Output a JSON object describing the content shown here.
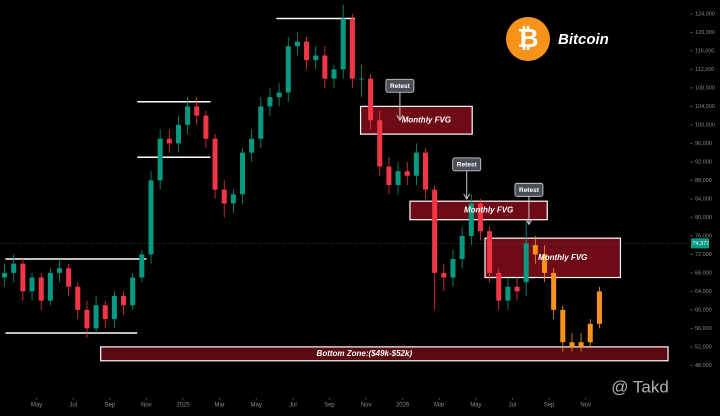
{
  "chart_data": {
    "type": "candlestick",
    "title": "Bitcoin",
    "logo_symbol": "₿",
    "watermark": "@ Takd",
    "xlim": [
      0,
      37.7
    ],
    "ylim": [
      41600,
      127000
    ],
    "xticks": [
      {
        "value": 2,
        "label": "May"
      },
      {
        "value": 4,
        "label": "Jul"
      },
      {
        "value": 6,
        "label": "Sep"
      },
      {
        "value": 8,
        "label": "Nov"
      },
      10,
      {
        "value": 12,
        "label": "Mar"
      },
      {
        "value": 14,
        "label": "May"
      },
      {
        "value": 16,
        "label": "Jul"
      },
      {
        "value": 18,
        "label": "Sep"
      },
      {
        "value": 20,
        "label": "Nov"
      },
      {
        "value": 22,
        "label": "2026"
      },
      {
        "value": 24,
        "label": "Mar"
      },
      {
        "value": 26,
        "label": "May"
      },
      {
        "value": 28,
        "label": "Jul"
      },
      {
        "value": 30,
        "label": "Sep"
      },
      {
        "value": 32,
        "label": "Nov"
      }
    ],
    "xtick_year_label": "2025",
    "yticks": [
      {
        "value": 48000,
        "label": "48,000"
      },
      {
        "value": 52000,
        "label": "52,000"
      },
      {
        "value": 56000,
        "label": "56,000"
      },
      {
        "value": 60000,
        "label": "60,000"
      },
      {
        "value": 64000,
        "label": "64,000"
      },
      {
        "value": 68000,
        "label": "68,000"
      },
      {
        "value": 72000,
        "label": "72,000"
      },
      {
        "value": 76000,
        "label": "76,000"
      },
      {
        "value": 80000,
        "label": "80,000"
      },
      {
        "value": 84000,
        "label": "84,000"
      },
      {
        "value": 88000,
        "label": "88,000"
      },
      {
        "value": 92000,
        "label": "92,000"
      },
      {
        "value": 96000,
        "label": "96,000"
      },
      {
        "value": 100000,
        "label": "100,000"
      },
      {
        "value": 104000,
        "label": "104,000"
      },
      {
        "value": 108000,
        "label": "108,000"
      },
      {
        "value": 112000,
        "label": "112,000"
      },
      {
        "value": 116000,
        "label": "116,000"
      },
      {
        "value": 120000,
        "label": "120,000"
      },
      {
        "value": 124000,
        "label": "124,000"
      }
    ],
    "up_color": "#089981",
    "down_color": "#f23645",
    "projection_color": "#f7931a",
    "candles": {
      "x": [
        0.25,
        0.75,
        1.25,
        1.75,
        2.25,
        2.75,
        3.25,
        3.75,
        4.25,
        4.75,
        5.25,
        5.75,
        6.25,
        6.75,
        7.25,
        7.75,
        8.25,
        8.75,
        9.25,
        9.75,
        10.25,
        10.75,
        11.25,
        11.75,
        12.25,
        12.75,
        13.25,
        13.75,
        14.25,
        14.75,
        15.25,
        15.75,
        16.25,
        16.75,
        17.25,
        17.75,
        18.25,
        18.75,
        19.25,
        19.75,
        20.25,
        20.75,
        21.25,
        21.75,
        22.25,
        22.75,
        23.25,
        23.75,
        24.25,
        24.75,
        25.25,
        25.75,
        26.25,
        26.75,
        27.25,
        27.75,
        28.25,
        28.75
      ],
      "open": [
        67000,
        68000,
        70000,
        64000,
        67000,
        62000,
        68000,
        69000,
        65000,
        60000,
        56000,
        61000,
        58000,
        63000,
        61000,
        67000,
        72000,
        88000,
        97000,
        96000,
        100000,
        104000,
        102000,
        97000,
        86000,
        83000,
        85000,
        94000,
        97000,
        104000,
        106000,
        107000,
        117000,
        118000,
        114000,
        115000,
        110000,
        112000,
        123000,
        110000,
        110000,
        101000,
        91000,
        87000,
        90000,
        89000,
        94000,
        86000,
        68000,
        67000,
        71000,
        76000,
        83000,
        77000,
        68000,
        62000,
        65000,
        66000
      ],
      "high": [
        70000,
        72000,
        71000,
        68000,
        68000,
        69000,
        71000,
        70000,
        66000,
        62000,
        63000,
        62000,
        64000,
        64000,
        68000,
        73000,
        90000,
        99000,
        99000,
        102000,
        106000,
        106000,
        103000,
        98000,
        88000,
        86000,
        95000,
        99000,
        106000,
        108000,
        109000,
        119000,
        120000,
        119000,
        117000,
        117000,
        113000,
        126000,
        124000,
        113000,
        111000,
        103000,
        93000,
        92000,
        92000,
        96000,
        95000,
        87000,
        70000,
        73000,
        78000,
        85000,
        84000,
        78000,
        69000,
        67000,
        67000,
        79000
      ],
      "low": [
        65000,
        66000,
        62000,
        62000,
        60000,
        61000,
        66000,
        63000,
        58000,
        54000,
        55000,
        56000,
        56000,
        59000,
        60000,
        66000,
        70000,
        86000,
        94000,
        94000,
        98000,
        100000,
        95000,
        84000,
        80000,
        81000,
        83000,
        92000,
        95000,
        102000,
        104000,
        105000,
        115000,
        112000,
        112000,
        108000,
        108000,
        110000,
        108000,
        106000,
        99000,
        89000,
        85000,
        85000,
        87000,
        87000,
        84000,
        60000,
        64000,
        65000,
        69000,
        74000,
        75000,
        66000,
        60000,
        60000,
        62000,
        63000
      ],
      "close": [
        68000,
        70000,
        64000,
        67000,
        62000,
        68000,
        69000,
        65000,
        60000,
        56000,
        61000,
        58000,
        63000,
        61000,
        67000,
        72000,
        88000,
        97000,
        96000,
        100000,
        104000,
        102000,
        97000,
        86000,
        83000,
        85000,
        94000,
        97000,
        104000,
        106000,
        107000,
        117000,
        118000,
        114000,
        115000,
        110000,
        112000,
        123000,
        110000,
        110000,
        101000,
        91000,
        87000,
        90000,
        89000,
        94000,
        86000,
        68000,
        67000,
        71000,
        76000,
        83000,
        77000,
        68000,
        62000,
        65000,
        64000,
        74377
      ]
    },
    "projection": {
      "x": [
        29.25,
        29.75,
        30.25,
        30.75,
        31.25,
        31.75,
        32.25,
        32.75
      ],
      "open": [
        74000,
        72000,
        68000,
        60000,
        53000,
        52000,
        53000,
        57000
      ],
      "high": [
        76000,
        74000,
        69000,
        61000,
        55000,
        55000,
        58000,
        65000
      ],
      "low": [
        70000,
        66000,
        58000,
        51000,
        51000,
        51000,
        52000,
        56000
      ],
      "close": [
        72000,
        68000,
        60000,
        53000,
        52000,
        53000,
        57000,
        64000
      ]
    },
    "last_price": {
      "value": 74377,
      "label": "74,377"
    },
    "levels": [
      {
        "value": 123000,
        "x": [
          15.1,
          19.4
        ]
      },
      {
        "value": 105000,
        "x": [
          7.5,
          11.5
        ]
      },
      {
        "value": 93000,
        "x": [
          7.5,
          11.5
        ]
      },
      {
        "value": 71000,
        "x": [
          0.3,
          8
        ]
      },
      {
        "value": 55000,
        "x": [
          0.3,
          7.5
        ]
      }
    ],
    "fvg_zones": [
      {
        "label": "Monthly FVG",
        "range": [
          98000,
          104000
        ],
        "x": [
          19.7,
          25.8
        ]
      },
      {
        "label": "Monthly FVG",
        "range": [
          79500,
          83500
        ],
        "x": [
          22.4,
          29.9
        ]
      },
      {
        "label": "Monthly FVG",
        "range": [
          67000,
          75500
        ],
        "x": [
          26.5,
          33.9
        ]
      }
    ],
    "bottom_zone": {
      "label": "Bottom Zone:($49k-$52k)",
      "range": [
        49000,
        52000
      ],
      "x": [
        5.5,
        36.5
      ]
    },
    "callouts": [
      {
        "label": "Retest",
        "x": 21.85,
        "price": 101000
      },
      {
        "label": "Retest",
        "x": 25.5,
        "price": 84000
      },
      {
        "label": "Retest",
        "x": 28.9,
        "price": 78500
      }
    ]
  }
}
